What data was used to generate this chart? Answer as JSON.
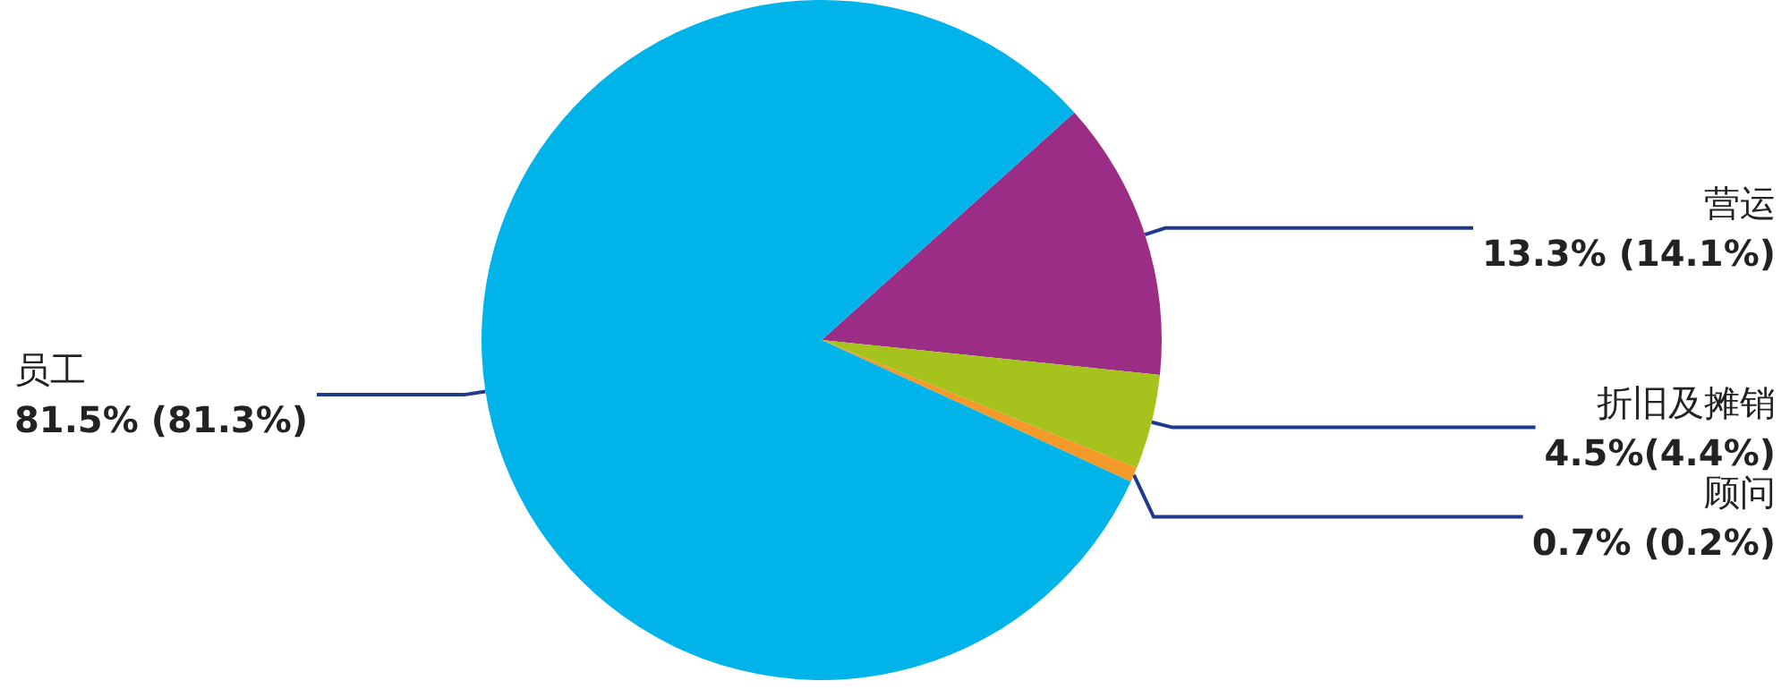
{
  "chart_data": {
    "type": "pie",
    "categories": [
      "营运",
      "折旧及摊销",
      "顾问",
      "员工"
    ],
    "values": [
      13.3,
      4.5,
      0.7,
      81.5
    ],
    "colors": [
      "#9b2d86",
      "#a5c31c",
      "#f39a2b",
      "#00b3e9"
    ],
    "value_labels": [
      "13.3% (14.1%)",
      "4.5%(4.4%)",
      "0.7% (0.2%)",
      "81.5% (81.3%)"
    ],
    "legend": false
  }
}
